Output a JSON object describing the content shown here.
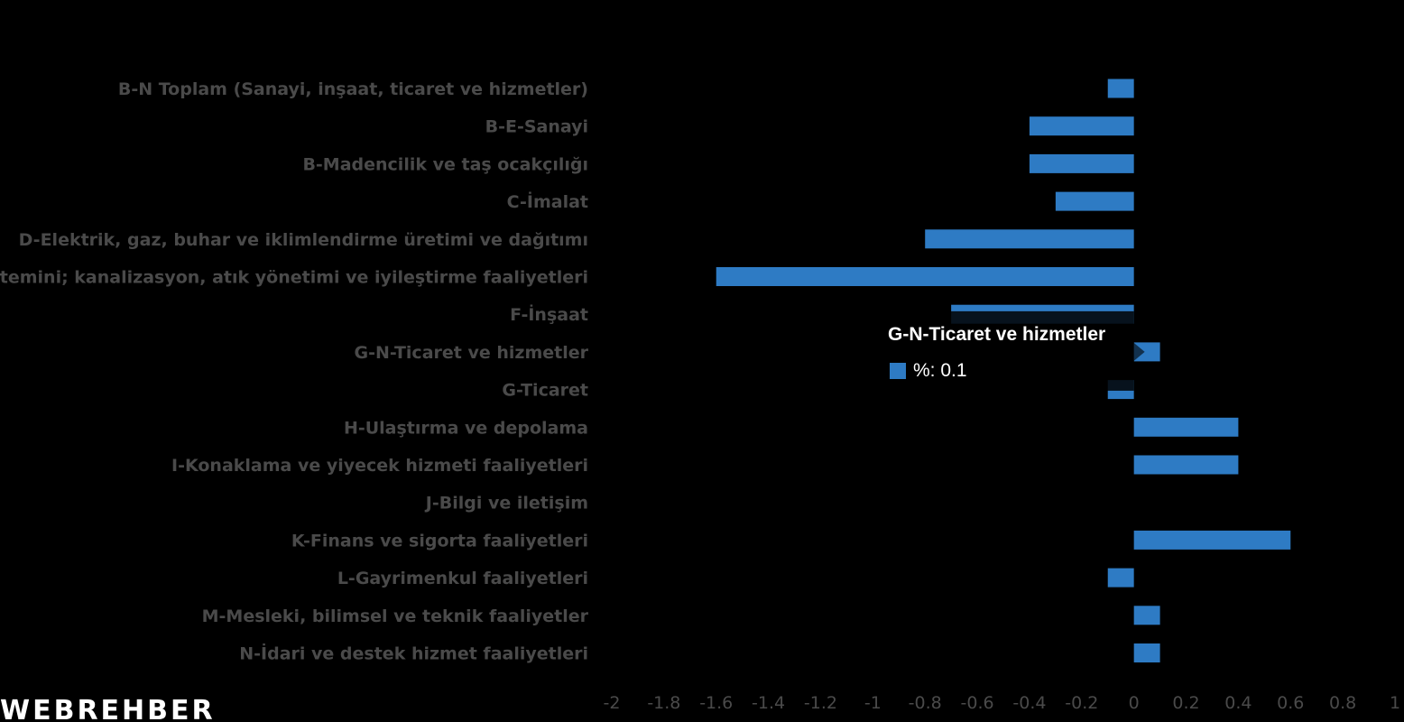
{
  "chart_data": {
    "type": "bar",
    "orientation": "horizontal",
    "categories": [
      "B-N Toplam (Sanayi, inşaat, ticaret ve hizmetler)",
      "B-E-Sanayi",
      "B-Madencilik ve taş ocakçılığı",
      "C-İmalat",
      "D-Elektrik, gaz, buhar ve iklimlendirme üretimi ve dağıtımı",
      "E-Su temini; kanalizasyon, atık yönetimi ve iyileştirme faaliyetleri",
      "F-İnşaat",
      "G-N-Ticaret ve hizmetler",
      "G-Ticaret",
      "H-Ulaştırma ve depolama",
      "I-Konaklama ve yiyecek hizmeti faaliyetleri",
      "J-Bilgi ve iletişim",
      "K-Finans ve sigorta faaliyetleri",
      "L-Gayrimenkul faaliyetleri",
      "M-Mesleki, bilimsel ve teknik faaliyetler",
      "N-İdari ve destek hizmet faaliyetleri"
    ],
    "series": [
      {
        "name": "%",
        "color": "#2e7bc4",
        "values": [
          -0.1,
          -0.4,
          -0.4,
          -0.3,
          -0.8,
          -1.6,
          -0.7,
          0.1,
          -0.1,
          0.4,
          0.4,
          0,
          0.6,
          -0.1,
          0.1,
          0.1
        ]
      }
    ],
    "xlim": [
      -2,
      1
    ],
    "xticks": [
      "-2",
      "-1.8",
      "-1.6",
      "-1.4",
      "-1.2",
      "-1",
      "-0.8",
      "-0.6",
      "-0.4",
      "-0.2",
      "0",
      "0.2",
      "0.4",
      "0.6",
      "0.8",
      "1"
    ],
    "xlabel": "",
    "ylabel": "",
    "title": "",
    "grid": false,
    "legend": "none"
  },
  "tooltip": {
    "title": "G-N-Ticaret ve hizmetler",
    "value_text": "%: 0.1",
    "category_index": 7
  },
  "logo": {
    "text": "WEBREHBER"
  },
  "colors": {
    "background": "#000000",
    "bar": "#2e7bc4",
    "label": "#4a4a4a",
    "tooltip_bg": "#000000"
  }
}
